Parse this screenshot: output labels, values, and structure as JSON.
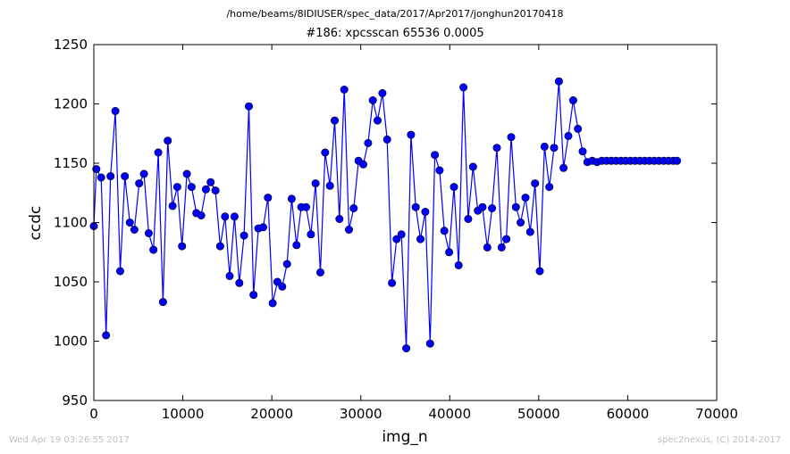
{
  "figure": {
    "path_title": "/home/beams/8IDIUSER/spec_data/2017/Apr2017/jonghun20170418",
    "footer_left": "Wed Apr 19 03:26:55 2017",
    "footer_right": "spec2nexus, (C) 2014-2017"
  },
  "colors": {
    "series": "#0000ff",
    "footer_text": "#c0c0c0"
  },
  "chart_data": {
    "type": "line",
    "title": "#186: xpcsscan 65536 0.0005",
    "xlabel": "img_n",
    "ylabel": "ccdc",
    "xlim": [
      0,
      70000
    ],
    "ylim": [
      950,
      1250
    ],
    "xticks": [
      0,
      10000,
      20000,
      30000,
      40000,
      50000,
      60000,
      70000
    ],
    "yticks": [
      950,
      1000,
      1050,
      1100,
      1150,
      1200,
      1250
    ],
    "grid": false,
    "marker": "circle",
    "series": [
      {
        "x": [
          0,
          284,
          819,
          1374,
          1880,
          2418,
          2962,
          3485,
          4045,
          4560,
          5090,
          5630,
          6170,
          6700,
          7240,
          7770,
          8310,
          8850,
          9380,
          9910,
          10450,
          10990,
          11520,
          12060,
          12590,
          13130,
          13670,
          14200,
          14740,
          15270,
          15810,
          16350,
          16880,
          17420,
          17950,
          18490,
          19030,
          19560,
          20100,
          20630,
          21170,
          21710,
          22240,
          22780,
          23310,
          23850,
          24390,
          24920,
          25460,
          25990,
          26530,
          27070,
          27600,
          28140,
          28670,
          29210,
          29750,
          30280,
          30820,
          31350,
          31890,
          32430,
          32960,
          33500,
          34030,
          34570,
          35110,
          35640,
          36180,
          36710,
          37250,
          37790,
          38320,
          38860,
          39390,
          39930,
          40470,
          41000,
          41540,
          42070,
          42610,
          43150,
          43680,
          44220,
          44750,
          45290,
          45830,
          46360,
          46900,
          47430,
          47970,
          48510,
          49040,
          49580,
          50110,
          50650,
          51190,
          51720,
          52260,
          52790,
          53330,
          53870,
          54400,
          54940,
          55470,
          56010,
          56550,
          57080,
          57620,
          58150,
          58690,
          59230,
          59760,
          60300,
          60830,
          61370,
          61910,
          62440,
          62980,
          63510,
          64050,
          64590,
          65120,
          65536
        ],
        "y": [
          1097,
          1145,
          1138,
          1005,
          1139,
          1194,
          1059,
          1139,
          1100,
          1094,
          1133,
          1141,
          1091,
          1077,
          1159,
          1033,
          1169,
          1114,
          1130,
          1080,
          1141,
          1130,
          1108,
          1106,
          1128,
          1134,
          1127,
          1080,
          1105,
          1055,
          1105,
          1049,
          1089,
          1198,
          1039,
          1095,
          1096,
          1121,
          1032,
          1050,
          1046,
          1065,
          1120,
          1081,
          1113,
          1113,
          1090,
          1133,
          1058,
          1159,
          1131,
          1186,
          1103,
          1212,
          1094,
          1112,
          1152,
          1149,
          1167,
          1203,
          1186,
          1209,
          1170,
          1049,
          1086,
          1090,
          994,
          1174,
          1113,
          1086,
          1109,
          998,
          1157,
          1144,
          1093,
          1075,
          1130,
          1064,
          1214,
          1103,
          1147,
          1110,
          1113,
          1079,
          1112,
          1163,
          1079,
          1086,
          1172,
          1113,
          1100,
          1121,
          1092,
          1133,
          1059,
          1164,
          1130,
          1163,
          1219,
          1146,
          1173,
          1203,
          1179,
          1160,
          1151,
          1152,
          1151,
          1152,
          1152,
          1152,
          1152,
          1152,
          1152,
          1152,
          1152,
          1152,
          1152,
          1152,
          1152,
          1152,
          1152,
          1152,
          1152,
          1152
        ]
      }
    ]
  }
}
